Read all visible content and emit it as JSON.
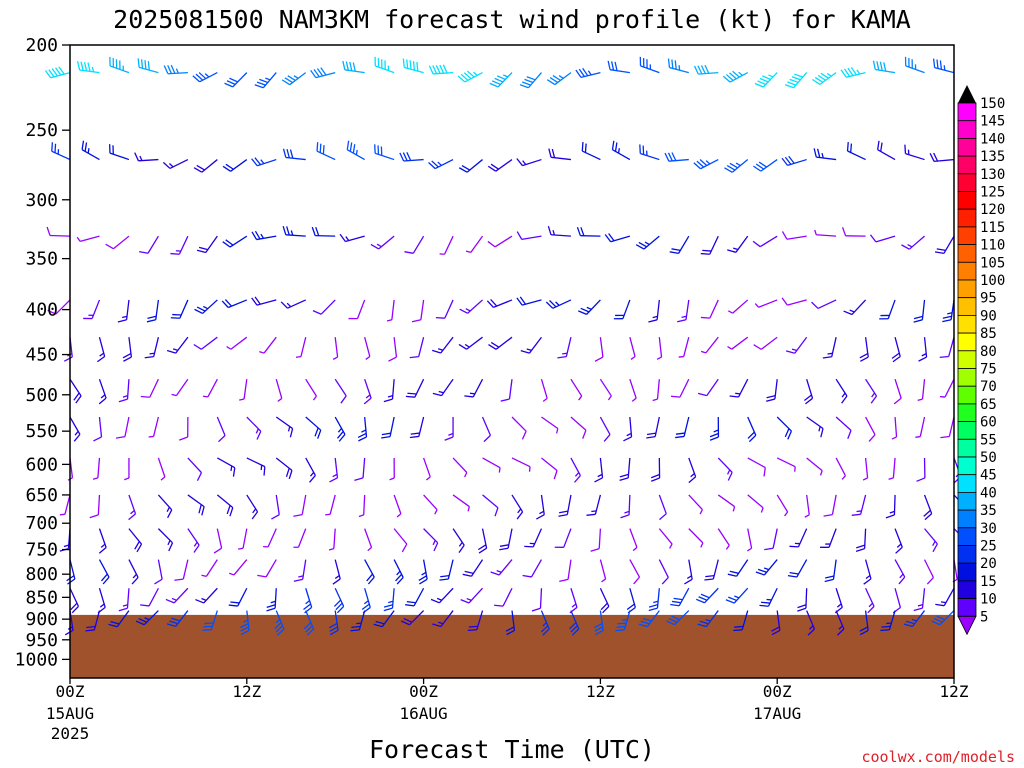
{
  "chart_data": {
    "type": "wind-barb-profile",
    "title": "2025081500 NAM3KM forecast wind profile (kt) for KAMA",
    "xlabel": "Forecast Time (UTC)",
    "ylabel": "",
    "credit": "coolwx.com/models",
    "y_axis": {
      "scale": "log",
      "range_hpa": [
        1050,
        200
      ],
      "tick_labels": [
        "200",
        "250",
        "300",
        "350",
        "400",
        "450",
        "500",
        "550",
        "600",
        "650",
        "700",
        "750",
        "800",
        "850",
        "900",
        "950",
        "1000"
      ]
    },
    "x_axis": {
      "range_hours": [
        0,
        60
      ],
      "ticks": [
        {
          "hour": 0,
          "label": "00Z",
          "sub": "15AUG",
          "sub2": "2025"
        },
        {
          "hour": 12,
          "label": "12Z",
          "sub": "",
          "sub2": ""
        },
        {
          "hour": 24,
          "label": "00Z",
          "sub": "16AUG",
          "sub2": ""
        },
        {
          "hour": 36,
          "label": "12Z",
          "sub": "",
          "sub2": ""
        },
        {
          "hour": 48,
          "label": "00Z",
          "sub": "17AUG",
          "sub2": ""
        },
        {
          "hour": 60,
          "label": "12Z",
          "sub": "",
          "sub2": ""
        }
      ]
    },
    "surface_pressure_hpa": 890,
    "ground_color": "#a0522d",
    "colorbar": {
      "labels": [
        "150",
        "145",
        "140",
        "135",
        "130",
        "125",
        "120",
        "115",
        "110",
        "105",
        "100",
        "95",
        "90",
        "85",
        "80",
        "75",
        "70",
        "65",
        "60",
        "55",
        "50",
        "45",
        "40",
        "35",
        "30",
        "25",
        "20",
        "15",
        "10",
        "5"
      ],
      "colors": [
        "#ff00ff",
        "#ff00cc",
        "#ff0099",
        "#ff0066",
        "#ff0033",
        "#ff0000",
        "#ff2000",
        "#ff4000",
        "#ff6000",
        "#ff8000",
        "#ffa000",
        "#ffc000",
        "#ffe000",
        "#ffff00",
        "#d0ff00",
        "#a0ff00",
        "#60ff00",
        "#20ff20",
        "#00ff60",
        "#00ffa0",
        "#00ffd0",
        "#00e0ff",
        "#00b0ff",
        "#0080ff",
        "#0050ff",
        "#0030f0",
        "#0010e0",
        "#2000e0",
        "#6000ff",
        "#9900ff"
      ],
      "top_color": "#000000"
    },
    "levels_hpa": [
      215,
      270,
      330,
      390,
      430,
      480,
      530,
      590,
      650,
      710,
      770,
      830,
      880
    ],
    "wind_profile": [
      {
        "level": 215,
        "dir": 255,
        "spd": 40
      },
      {
        "level": 270,
        "dir": 265,
        "spd": 25
      },
      {
        "level": 330,
        "dir": 240,
        "spd": 15
      },
      {
        "level": 390,
        "dir": 220,
        "spd": 15
      },
      {
        "level": 430,
        "dir": 200,
        "spd": 10
      },
      {
        "level": 480,
        "dir": 180,
        "spd": 10
      },
      {
        "level": 530,
        "dir": 160,
        "spd": 15
      },
      {
        "level": 590,
        "dir": 150,
        "spd": 10
      },
      {
        "level": 650,
        "dir": 160,
        "spd": 10
      },
      {
        "level": 710,
        "dir": 170,
        "spd": 10
      },
      {
        "level": 770,
        "dir": 185,
        "spd": 15
      },
      {
        "level": 830,
        "dir": 190,
        "spd": 20
      },
      {
        "level": 880,
        "dir": 190,
        "spd": 25
      }
    ]
  }
}
